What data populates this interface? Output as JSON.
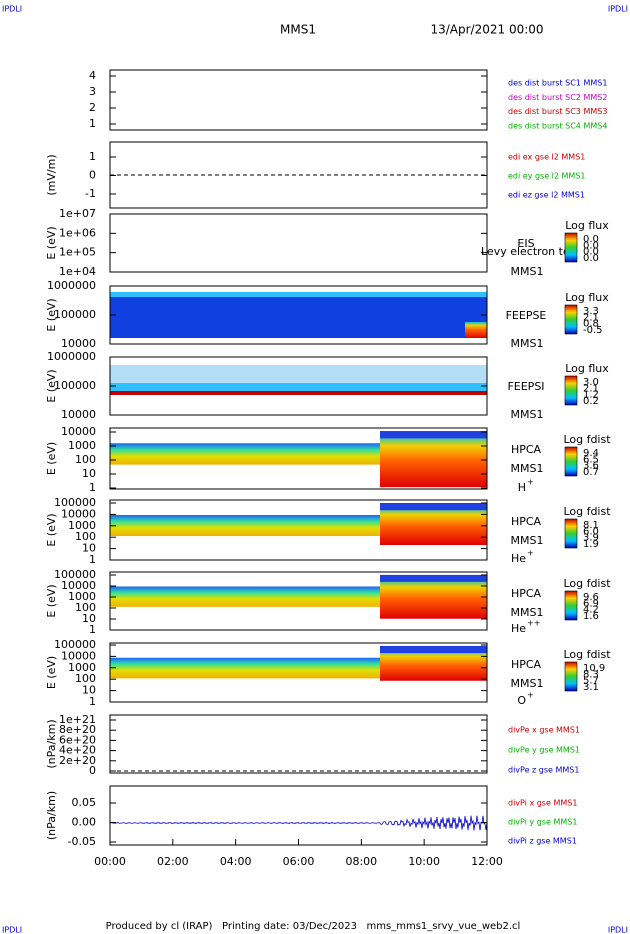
{
  "header": {
    "corner_left": "IPDLI",
    "corner_right": "IPDLI",
    "title": "MMS1",
    "date": "13/Apr/2021 00:00"
  },
  "panels": [
    {
      "yticks": [
        "4",
        "3",
        "2",
        "1"
      ],
      "legend": [
        {
          "text": "des dist burst SC1 MMS1",
          "color": "#0000c8"
        },
        {
          "text": "des dist burst SC2 MMS2",
          "color": "#c800c8"
        },
        {
          "text": "des dist burst SC3 MMS3",
          "color": "#c80000"
        },
        {
          "text": "des dist burst SC4 MMS4",
          "color": "#00b400"
        }
      ]
    },
    {
      "ylabel": "(mV/m)",
      "yticks": [
        "1",
        "0",
        "-1"
      ],
      "legend": [
        {
          "text": "edi ex gse l2 MMS1",
          "color": "#c80000"
        },
        {
          "text": "edi ey gse l2 MMS1",
          "color": "#00b400"
        },
        {
          "text": "edi ez gse l2 MMS1",
          "color": "#0000c8"
        }
      ]
    },
    {
      "ylabel": "E (eV)",
      "yticks": [
        "1e+07",
        "1e+06",
        "1e+05",
        "1e+04"
      ],
      "instrument": "EIS",
      "spacecraft": "MMS1",
      "overlay": "Levy electron to",
      "colorbar": {
        "title": "Log flux",
        "labels": [
          "0.0",
          "0.0",
          "0.0",
          "0.0"
        ]
      }
    },
    {
      "ylabel": "E (eV)",
      "yticks": [
        "1000000",
        "100000",
        "10000"
      ],
      "instrument": "FEEPSE",
      "spacecraft": "MMS1",
      "colorbar": {
        "title": "Log flux",
        "labels": [
          "3.3",
          "2.1",
          "0.8",
          "-0.5"
        ]
      }
    },
    {
      "ylabel": "E (eV)",
      "yticks": [
        "1000000",
        "100000",
        "10000"
      ],
      "instrument": "FEEPSI",
      "spacecraft": "MMS1",
      "colorbar": {
        "title": "Log flux",
        "labels": [
          "3.0",
          "2.1",
          "1.2",
          "0.2"
        ]
      }
    },
    {
      "ylabel": "E (eV)",
      "yticks": [
        "10000",
        "1000",
        "100",
        "10",
        "1"
      ],
      "instrument": "HPCA",
      "spacecraft": "MMS1",
      "species": {
        "name": "H",
        "charge": "+"
      },
      "colorbar": {
        "title": "Log fdist",
        "labels": [
          "9.4",
          "6.5",
          "3.6",
          "0.7"
        ]
      }
    },
    {
      "ylabel": "E (eV)",
      "yticks": [
        "100000",
        "10000",
        "1000",
        "100",
        "10",
        "1"
      ],
      "instrument": "HPCA",
      "spacecraft": "MMS1",
      "species": {
        "name": "He",
        "charge": "+"
      },
      "colorbar": {
        "title": "Log fdist",
        "labels": [
          "8.1",
          "6.0",
          "3.9",
          "1.9"
        ]
      }
    },
    {
      "ylabel": "E (eV)",
      "yticks": [
        "100000",
        "10000",
        "1000",
        "100",
        "10",
        "1"
      ],
      "instrument": "HPCA",
      "spacecraft": "MMS1",
      "species": {
        "name": "He",
        "charge": "++"
      },
      "colorbar": {
        "title": "Log fdist",
        "labels": [
          "9.6",
          "6.9",
          "4.2",
          "1.6"
        ]
      }
    },
    {
      "ylabel": "E (eV)",
      "yticks": [
        "100000",
        "10000",
        "1000",
        "100",
        "10",
        "1"
      ],
      "instrument": "HPCA",
      "spacecraft": "MMS1",
      "species": {
        "name": "O",
        "charge": "+"
      },
      "colorbar": {
        "title": "Log fdist",
        "labels": [
          "10.9",
          "8.3",
          "5.7",
          "3.1"
        ]
      }
    },
    {
      "ylabel": "(nPa/km)",
      "yticks": [
        "1e+21",
        "8e+20",
        "6e+20",
        "4e+20",
        "2e+20",
        "0"
      ],
      "legend": [
        {
          "text": "divPe x gse MMS1",
          "color": "#c80000"
        },
        {
          "text": "divPe y gse MMS1",
          "color": "#00b400"
        },
        {
          "text": "divPe z gse MMS1",
          "color": "#0000c8"
        }
      ]
    },
    {
      "ylabel": "(nPa/km)",
      "yticks": [
        "0.05",
        "0.00",
        "-0.05"
      ],
      "legend": [
        {
          "text": "divPi x gse MMS1",
          "color": "#c80000"
        },
        {
          "text": "divPi y gse MMS1",
          "color": "#00b400"
        },
        {
          "text": "divPi z gse MMS1",
          "color": "#0000c8"
        }
      ]
    }
  ],
  "xticks": [
    "00:00",
    "02:00",
    "04:00",
    "06:00",
    "08:00",
    "10:00",
    "12:00"
  ],
  "footer": {
    "corner_left": "IPDLI",
    "corner_right": "IPDLI",
    "text": "Produced by cl (IRAP)   Printing date: 03/Dec/2023   mms_mms1_srvy_vue_web2.cl"
  }
}
